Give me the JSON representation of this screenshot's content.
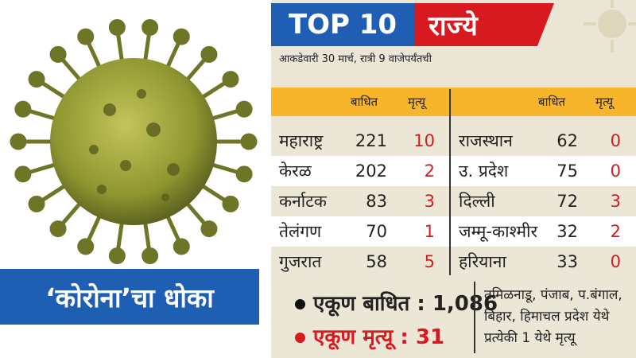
{
  "left": {
    "caption": "‘कोरोना’चा धोका"
  },
  "header": {
    "top": "TOP 10",
    "red": "राज्ये",
    "subtitle": "आकडेवारी 30 मार्च, रात्री 9 वाजेपर्यंतची"
  },
  "table": {
    "col_affected": "बाधित",
    "col_deaths": "मृत्यू",
    "left_rows": [
      {
        "state": "महाराष्ट्र",
        "affected": "221",
        "deaths": "10"
      },
      {
        "state": "केरळ",
        "affected": "202",
        "deaths": "2"
      },
      {
        "state": "कर्नाटक",
        "affected": "83",
        "deaths": "3"
      },
      {
        "state": "तेलंगण",
        "affected": "70",
        "deaths": "1"
      },
      {
        "state": "गुजरात",
        "affected": "58",
        "deaths": "5"
      }
    ],
    "right_rows": [
      {
        "state": "राजस्थान",
        "affected": "62",
        "deaths": "0"
      },
      {
        "state": "उ. प्रदेश",
        "affected": "75",
        "deaths": "0"
      },
      {
        "state": "दिल्ली",
        "affected": "72",
        "deaths": "3"
      },
      {
        "state": "जम्मू-काश्मीर",
        "affected": "32",
        "deaths": "2"
      },
      {
        "state": "हरियाना",
        "affected": "33",
        "deaths": "0"
      }
    ]
  },
  "totals": {
    "affected": "एकूण बाधित : 1,086",
    "deaths": "एकूण मृत्यू : 31"
  },
  "note": {
    "line1": "तमिळनाडू, पंजाब, प.बंगाल,",
    "line2": "बिहार, हिमाचल प्रदेश येथे",
    "line3": "प्रत्येकी 1 येथे मृत्यू"
  },
  "colors": {
    "blue": "#1f5fb3",
    "red": "#d71920",
    "orange": "#f7b52c",
    "virus": "#8f9630"
  }
}
